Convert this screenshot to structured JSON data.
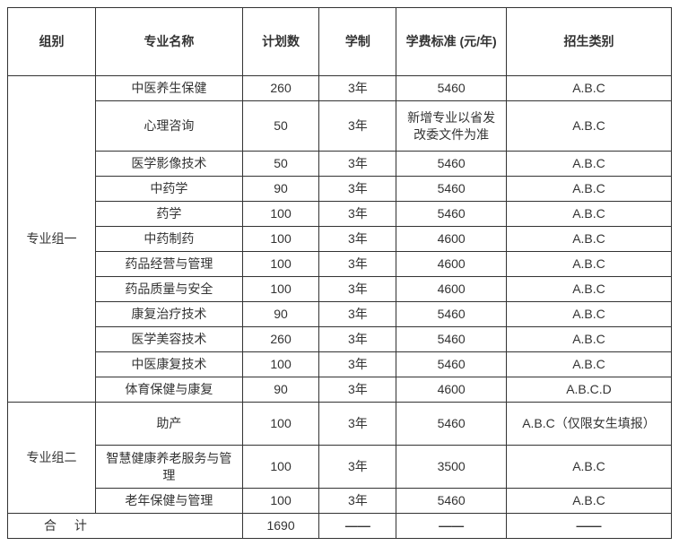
{
  "headers": {
    "group": "组别",
    "major": "专业名称",
    "plan": "计划数",
    "duration": "学制",
    "tuition": "学费标准 (元/年)",
    "category": "招生类别"
  },
  "groups": {
    "g1": "专业组一",
    "g2": "专业组二"
  },
  "rows": {
    "r1": {
      "major": "中医养生保健",
      "plan": "260",
      "duration": "3年",
      "tuition": "5460",
      "category": "A.B.C"
    },
    "r2": {
      "major": "心理咨询",
      "plan": "50",
      "duration": "3年",
      "tuition": "新增专业以省发改委文件为准",
      "category": "A.B.C"
    },
    "r3": {
      "major": "医学影像技术",
      "plan": "50",
      "duration": "3年",
      "tuition": "5460",
      "category": "A.B.C"
    },
    "r4": {
      "major": "中药学",
      "plan": "90",
      "duration": "3年",
      "tuition": "5460",
      "category": "A.B.C"
    },
    "r5": {
      "major": "药学",
      "plan": "100",
      "duration": "3年",
      "tuition": "5460",
      "category": "A.B.C"
    },
    "r6": {
      "major": "中药制药",
      "plan": "100",
      "duration": "3年",
      "tuition": "4600",
      "category": "A.B.C"
    },
    "r7": {
      "major": "药品经营与管理",
      "plan": "100",
      "duration": "3年",
      "tuition": "4600",
      "category": "A.B.C"
    },
    "r8": {
      "major": "药品质量与安全",
      "plan": "100",
      "duration": "3年",
      "tuition": "4600",
      "category": "A.B.C"
    },
    "r9": {
      "major": "康复治疗技术",
      "plan": "90",
      "duration": "3年",
      "tuition": "5460",
      "category": "A.B.C"
    },
    "r10": {
      "major": "医学美容技术",
      "plan": "260",
      "duration": "3年",
      "tuition": "5460",
      "category": "A.B.C"
    },
    "r11": {
      "major": "中医康复技术",
      "plan": "100",
      "duration": "3年",
      "tuition": "5460",
      "category": "A.B.C"
    },
    "r12": {
      "major": "体育保健与康复",
      "plan": "90",
      "duration": "3年",
      "tuition": "4600",
      "category": "A.B.C.D"
    },
    "r13": {
      "major": "助产",
      "plan": "100",
      "duration": "3年",
      "tuition": "5460",
      "category": "A.B.C（仅限女生填报）"
    },
    "r14": {
      "major": "智慧健康养老服务与管理",
      "plan": "100",
      "duration": "3年",
      "tuition": "3500",
      "category": "A.B.C"
    },
    "r15": {
      "major": "老年保健与管理",
      "plan": "100",
      "duration": "3年",
      "tuition": "5460",
      "category": "A.B.C"
    }
  },
  "total": {
    "label": "合 计",
    "plan": "1690",
    "dash": "——"
  },
  "style": {
    "border_color": "#333333",
    "text_color": "#333333",
    "background": "#ffffff",
    "font_size": 14,
    "header_font_weight": "bold"
  }
}
